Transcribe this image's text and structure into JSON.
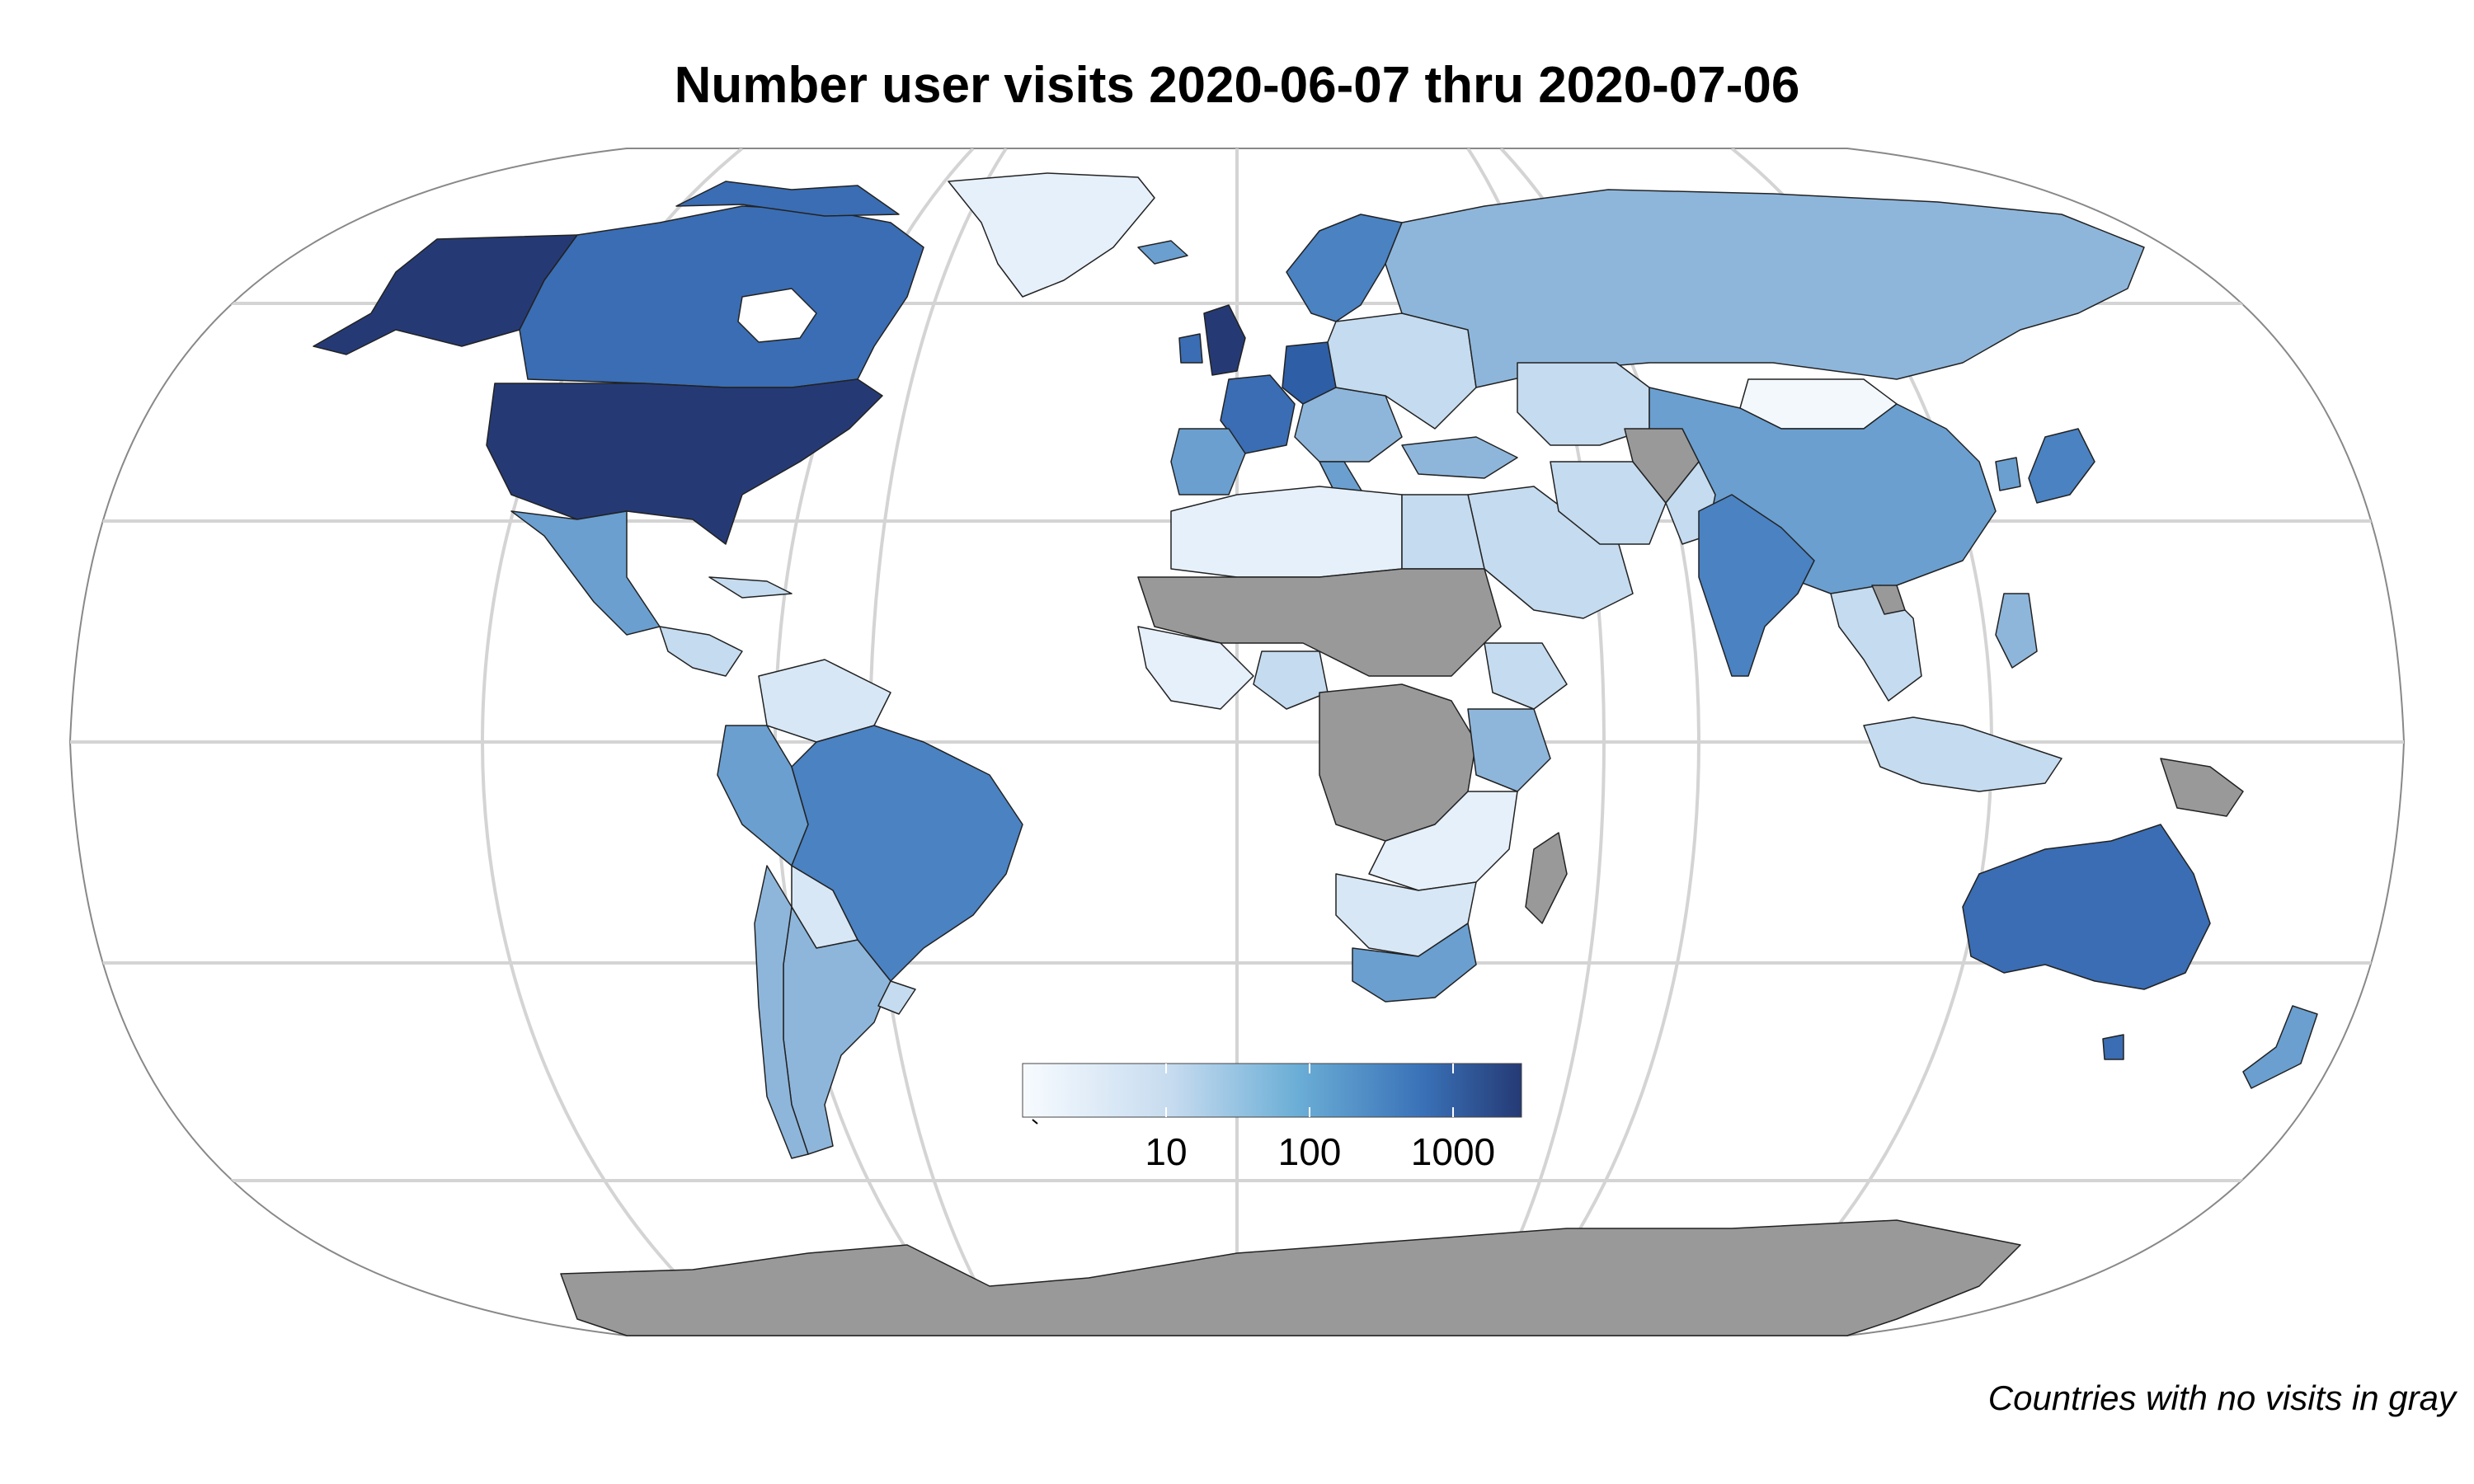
{
  "title": "Number user visits 2020-06-07 thru 2020-07-06",
  "caption": "Countries with no visits in gray",
  "legend": {
    "scale": "log10",
    "domain": [
      1,
      3000
    ],
    "ticks": [
      {
        "label": "10",
        "value": 10
      },
      {
        "label": "100",
        "value": 100
      },
      {
        "label": "1000",
        "value": 1000
      }
    ],
    "colors": [
      "#f7fbff",
      "#c6dbef",
      "#6baed6",
      "#3a72b8",
      "#253a75"
    ]
  },
  "no_data_color": "#999999",
  "graticule_color": "#d4d4d4",
  "regions": [
    {
      "name": "United States",
      "level": "highest"
    },
    {
      "name": "Alaska",
      "level": "highest"
    },
    {
      "name": "Canada",
      "level": "high"
    },
    {
      "name": "Greenland",
      "level": "lowest"
    },
    {
      "name": "Mexico",
      "level": "medium"
    },
    {
      "name": "Central America",
      "level": "low"
    },
    {
      "name": "South America (north)",
      "level": "medium"
    },
    {
      "name": "Brazil",
      "level": "medium-high"
    },
    {
      "name": "Argentina",
      "level": "medium"
    },
    {
      "name": "United Kingdom",
      "level": "highest"
    },
    {
      "name": "France",
      "level": "medium-high"
    },
    {
      "name": "Germany",
      "level": "high"
    },
    {
      "name": "Scandinavia",
      "level": "medium-high"
    },
    {
      "name": "Eastern Europe",
      "level": "low"
    },
    {
      "name": "Russia",
      "level": "medium"
    },
    {
      "name": "Kazakhstan",
      "level": "low"
    },
    {
      "name": "Mongolia",
      "level": "lowest"
    },
    {
      "name": "China",
      "level": "medium"
    },
    {
      "name": "Japan",
      "level": "medium-high"
    },
    {
      "name": "India",
      "level": "medium-high"
    },
    {
      "name": "Middle East",
      "level": "low"
    },
    {
      "name": "North Africa",
      "level": "lowest"
    },
    {
      "name": "Egypt",
      "level": "low"
    },
    {
      "name": "Nigeria",
      "level": "low"
    },
    {
      "name": "East Africa",
      "level": "low"
    },
    {
      "name": "Southern Africa",
      "level": "low"
    },
    {
      "name": "South Africa",
      "level": "medium"
    },
    {
      "name": "Southeast Asia",
      "level": "low"
    },
    {
      "name": "Indonesia",
      "level": "low"
    },
    {
      "name": "Australia",
      "level": "high"
    },
    {
      "name": "New Zealand",
      "level": "medium"
    },
    {
      "name": "Central Africa",
      "level": "none"
    },
    {
      "name": "Sahel",
      "level": "none"
    },
    {
      "name": "Madagascar",
      "level": "none"
    },
    {
      "name": "Afghanistan",
      "level": "none"
    },
    {
      "name": "Papua New Guinea",
      "level": "none"
    },
    {
      "name": "Antarctica",
      "level": "none"
    }
  ]
}
